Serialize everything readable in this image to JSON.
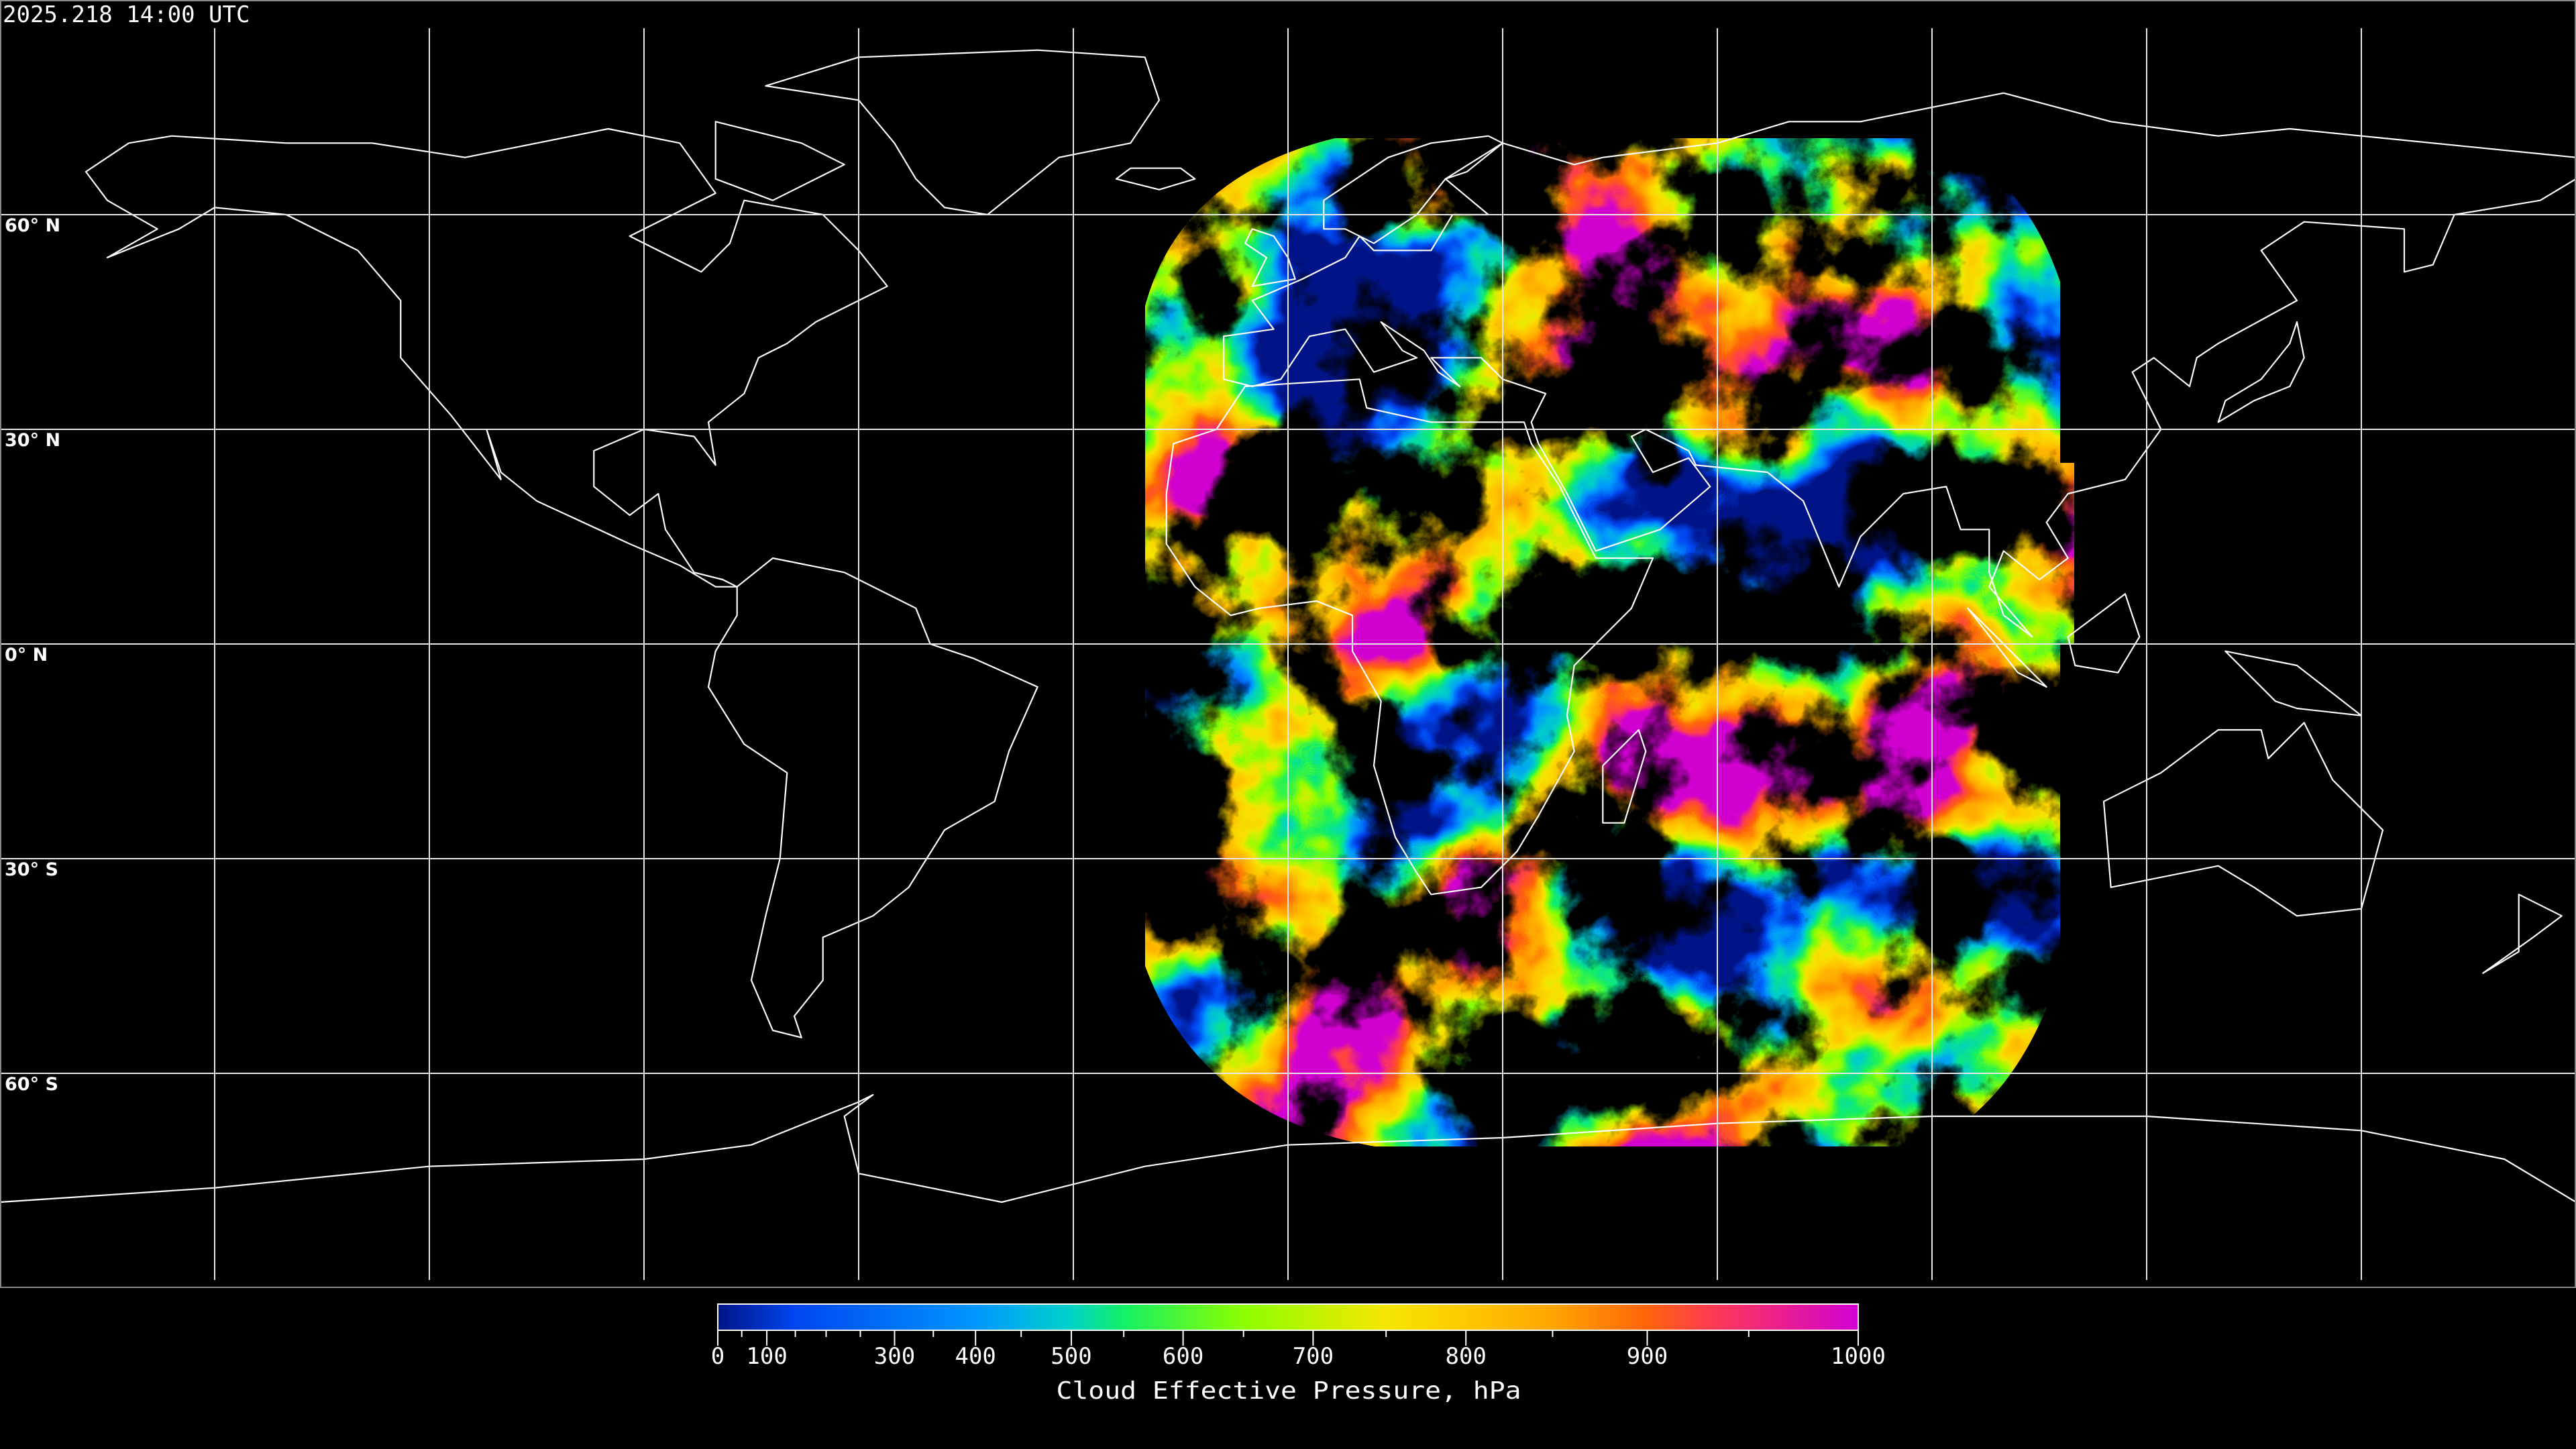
{
  "header": {
    "timestamp": "2025.218 14:00 UTC"
  },
  "map": {
    "projection": "equirectangular",
    "grid_spacing_deg": 30,
    "lat_labels": [
      "60° N",
      "30° N",
      "0° N",
      "30° S",
      "60° S"
    ],
    "coastline_color": "#ffffff",
    "grid_color": "#ffffff",
    "background_color": "#000000"
  },
  "colorbar": {
    "label": "Cloud Effective Pressure, hPa",
    "min": 0,
    "max": 1000,
    "major_ticks": [
      "0",
      "100",
      "300",
      "400",
      "500",
      "600",
      "700",
      "800",
      "900",
      "1000"
    ],
    "minor_ticks": [
      50,
      150,
      200,
      250,
      350,
      450,
      550,
      650,
      750,
      850,
      950
    ],
    "colors": [
      "#001488",
      "#0046f0",
      "#0096ff",
      "#00d2c8",
      "#14f064",
      "#8cff00",
      "#f5e600",
      "#ffc800",
      "#ffa500",
      "#ff640a",
      "#ff3c50",
      "#d200d2"
    ]
  }
}
